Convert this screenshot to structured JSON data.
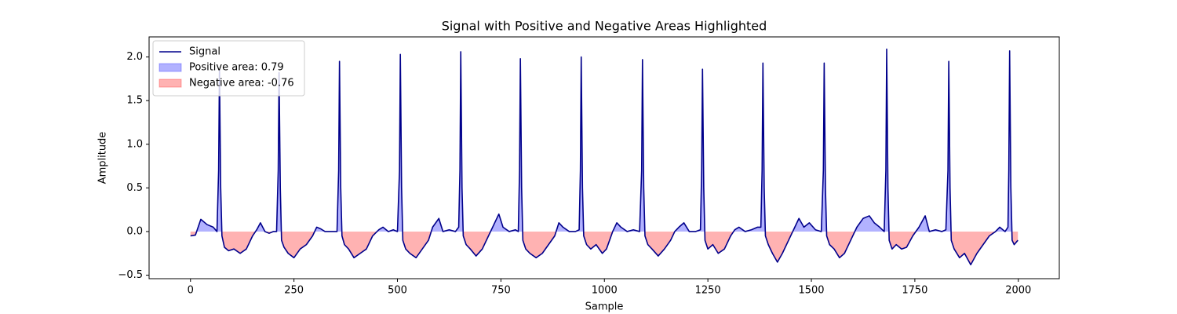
{
  "chart_data": {
    "type": "line",
    "title": "Signal with Positive and Negative Areas Highlighted",
    "xlabel": "Sample",
    "ylabel": "Amplitude",
    "x": [
      0,
      12,
      25,
      40,
      55,
      64,
      68,
      70,
      73,
      76,
      82,
      92,
      105,
      120,
      135,
      150,
      160,
      169,
      180,
      190,
      200,
      208,
      212,
      214,
      217,
      220,
      226,
      236,
      250,
      265,
      280,
      295,
      305,
      315,
      325,
      340,
      354,
      358,
      360,
      363,
      366,
      372,
      382,
      395,
      410,
      425,
      440,
      455,
      465,
      478,
      490,
      500,
      505,
      507,
      510,
      513,
      520,
      530,
      545,
      560,
      575,
      585,
      600,
      610,
      625,
      640,
      648,
      651,
      653,
      656,
      659,
      666,
      676,
      690,
      705,
      720,
      735,
      745,
      755,
      770,
      785,
      792,
      795,
      797,
      800,
      803,
      810,
      820,
      835,
      850,
      865,
      880,
      890,
      900,
      915,
      930,
      939,
      942,
      944,
      947,
      950,
      957,
      967,
      980,
      995,
      1005,
      1020,
      1030,
      1040,
      1055,
      1070,
      1085,
      1090,
      1092,
      1095,
      1098,
      1105,
      1115,
      1130,
      1145,
      1160,
      1170,
      1180,
      1192,
      1205,
      1220,
      1232,
      1235,
      1237,
      1240,
      1243,
      1250,
      1262,
      1275,
      1290,
      1305,
      1315,
      1325,
      1340,
      1355,
      1370,
      1378,
      1381,
      1383,
      1386,
      1389,
      1396,
      1406,
      1418,
      1430,
      1445,
      1460,
      1470,
      1482,
      1495,
      1510,
      1524,
      1529,
      1531,
      1534,
      1537,
      1544,
      1555,
      1568,
      1580,
      1595,
      1610,
      1625,
      1640,
      1652,
      1665,
      1676,
      1680,
      1682,
      1685,
      1688,
      1695,
      1705,
      1718,
      1730,
      1745,
      1760,
      1775,
      1785,
      1800,
      1815,
      1825,
      1830,
      1832,
      1835,
      1838,
      1845,
      1858,
      1870,
      1885,
      1900,
      1915,
      1930,
      1945,
      1955,
      1968,
      1975,
      1977,
      1979,
      1982,
      1985,
      1990,
      1999
    ],
    "series": [
      {
        "name": "Signal",
        "color": "#00008b",
        "values": [
          -0.05,
          -0.04,
          0.14,
          0.08,
          0.05,
          0.0,
          0.7,
          1.85,
          0.5,
          -0.05,
          -0.18,
          -0.22,
          -0.2,
          -0.25,
          -0.2,
          -0.05,
          0.02,
          0.1,
          0.0,
          -0.02,
          0.0,
          0.0,
          0.7,
          1.82,
          0.5,
          -0.1,
          -0.18,
          -0.25,
          -0.3,
          -0.2,
          -0.15,
          -0.05,
          0.05,
          0.03,
          0.0,
          0.0,
          0.0,
          0.7,
          1.95,
          0.5,
          -0.05,
          -0.15,
          -0.2,
          -0.3,
          -0.25,
          -0.2,
          -0.05,
          0.02,
          0.05,
          0.0,
          0.02,
          0.0,
          0.7,
          2.03,
          0.5,
          -0.1,
          -0.2,
          -0.25,
          -0.3,
          -0.2,
          -0.1,
          0.05,
          0.15,
          0.0,
          0.02,
          0.0,
          0.05,
          0.7,
          2.06,
          0.5,
          -0.05,
          -0.15,
          -0.2,
          -0.28,
          -0.2,
          -0.05,
          0.1,
          0.2,
          0.05,
          0.0,
          0.02,
          0.0,
          0.7,
          1.98,
          0.5,
          -0.1,
          -0.2,
          -0.25,
          -0.3,
          -0.25,
          -0.15,
          -0.05,
          0.1,
          0.05,
          0.0,
          0.0,
          0.02,
          0.7,
          2.0,
          0.5,
          -0.05,
          -0.15,
          -0.2,
          -0.15,
          -0.25,
          -0.2,
          0.0,
          0.1,
          0.05,
          0.0,
          0.02,
          0.0,
          0.7,
          1.97,
          0.5,
          -0.05,
          -0.15,
          -0.2,
          -0.28,
          -0.2,
          -0.1,
          0.0,
          0.05,
          0.1,
          0.0,
          0.0,
          0.02,
          0.7,
          1.86,
          0.5,
          -0.1,
          -0.2,
          -0.15,
          -0.25,
          -0.2,
          -0.05,
          0.02,
          0.05,
          0.0,
          0.02,
          0.05,
          0.05,
          0.7,
          1.93,
          0.5,
          -0.05,
          -0.15,
          -0.25,
          -0.35,
          -0.25,
          -0.1,
          0.05,
          0.15,
          0.05,
          0.1,
          0.02,
          0.0,
          0.7,
          1.93,
          0.5,
          -0.05,
          -0.15,
          -0.2,
          -0.3,
          -0.25,
          -0.1,
          0.05,
          0.15,
          0.18,
          0.1,
          0.05,
          0.0,
          0.7,
          2.09,
          0.5,
          -0.1,
          -0.2,
          -0.15,
          -0.2,
          -0.18,
          -0.05,
          0.05,
          0.18,
          0.0,
          0.02,
          0.0,
          0.02,
          0.7,
          1.95,
          0.5,
          -0.1,
          -0.2,
          -0.3,
          -0.25,
          -0.38,
          -0.25,
          -0.15,
          -0.05,
          0.0,
          0.05,
          0.0,
          0.05,
          0.7,
          2.07,
          0.5,
          -0.1,
          -0.15,
          -0.1
        ]
      }
    ],
    "positive_fill": {
      "name": "Positive area: 0.79",
      "color": "#0000ff"
    },
    "negative_fill": {
      "name": "Negative area: -0.76",
      "color": "#ff0000"
    },
    "fill_opacity": 0.3,
    "xlim": [
      -100,
      2099
    ],
    "ylim": [
      -0.54,
      2.23
    ],
    "xticks": [
      0,
      250,
      500,
      750,
      1000,
      1250,
      1500,
      1750,
      2000
    ],
    "yticks": [
      {
        "value": -0.5,
        "label": "−0.5"
      },
      {
        "value": 0,
        "label": "0.0"
      },
      {
        "value": 0.5,
        "label": "0.5"
      },
      {
        "value": 1,
        "label": "1.0"
      },
      {
        "value": 1.5,
        "label": "1.5"
      },
      {
        "value": 2,
        "label": "2.0"
      }
    ],
    "legend": "upper left"
  }
}
